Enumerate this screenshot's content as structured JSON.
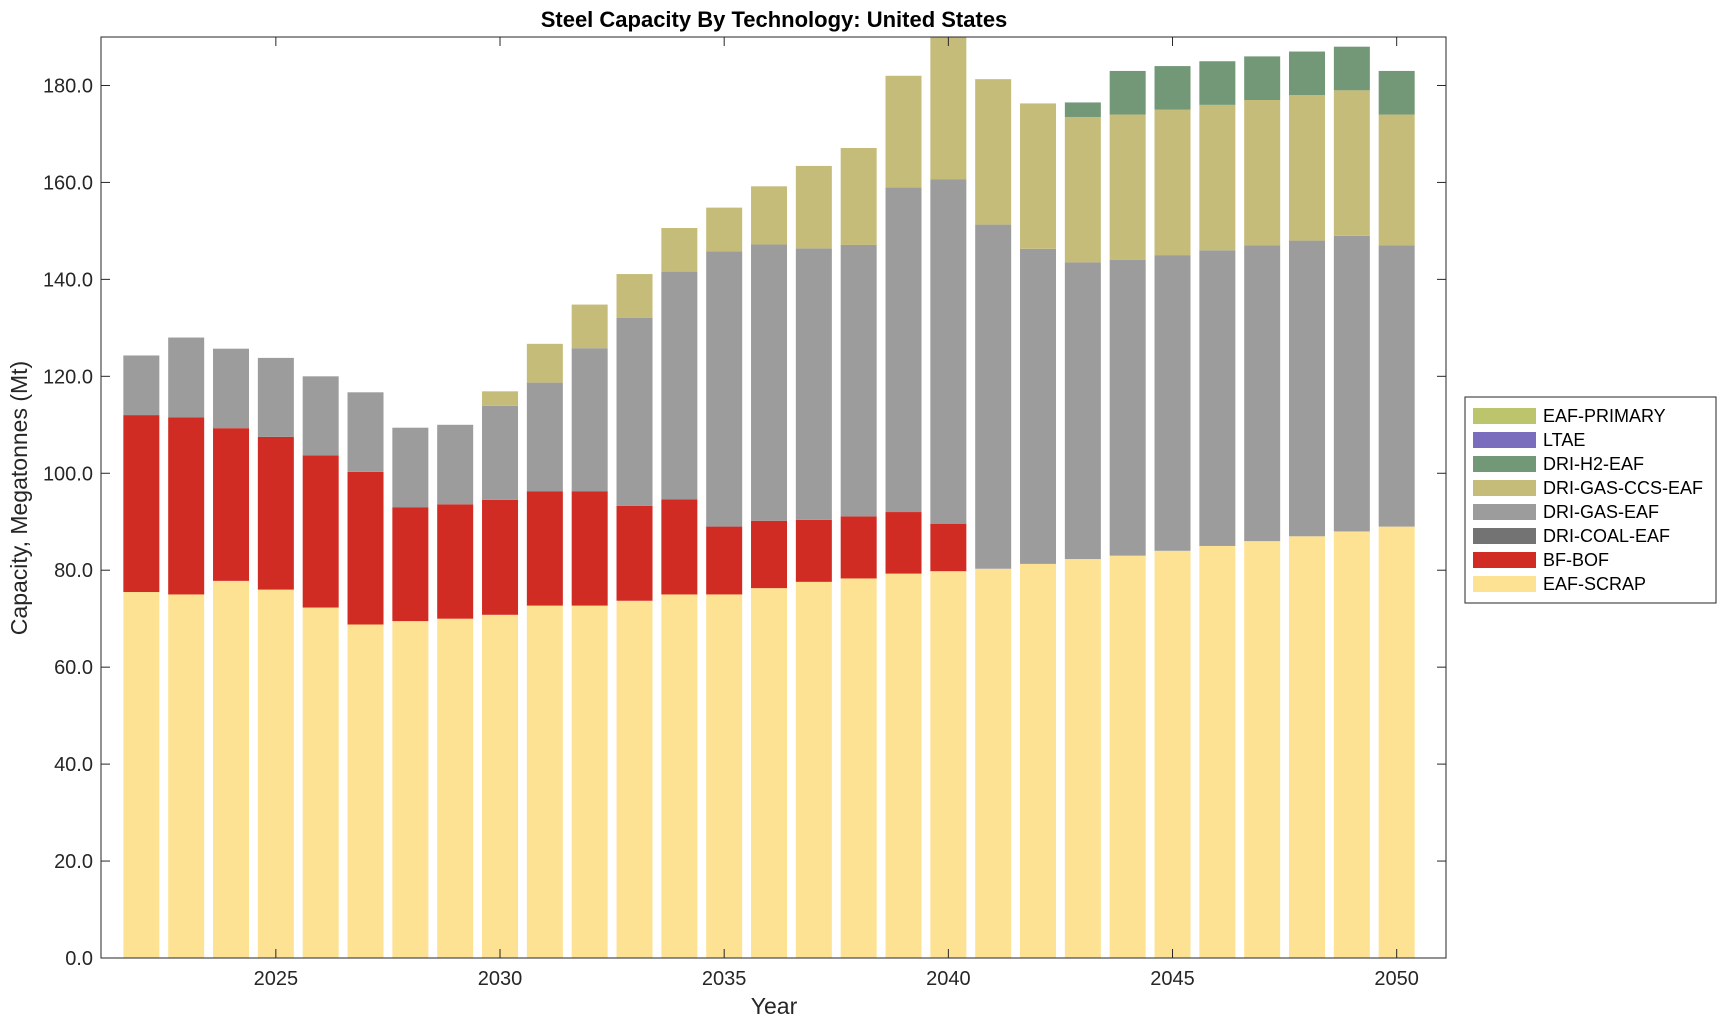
{
  "chart_data": {
    "type": "bar",
    "stacked": true,
    "title": "Steel Capacity By Technology: United States",
    "xlabel": "Year",
    "ylabel": "Capacity, Megatonnes (Mt)",
    "xlim": [
      2021.1,
      2051.1
    ],
    "ylim": [
      0,
      190
    ],
    "xticks": [
      2025,
      2030,
      2035,
      2040,
      2045,
      2050
    ],
    "xtick_labels": [
      "2025",
      "2030",
      "2035",
      "2040",
      "2045",
      "2050"
    ],
    "yticks": [
      0,
      20,
      40,
      60,
      80,
      100,
      120,
      140,
      160,
      180
    ],
    "ytick_labels": [
      "0.0",
      "20.0",
      "40.0",
      "60.0",
      "80.0",
      "100.0",
      "120.0",
      "140.0",
      "160.0",
      "180.0"
    ],
    "grid": false,
    "legend_position": "right",
    "x": [
      2022,
      2023,
      2024,
      2025,
      2026,
      2027,
      2028,
      2029,
      2030,
      2031,
      2032,
      2033,
      2034,
      2035,
      2036,
      2037,
      2038,
      2039,
      2040,
      2041,
      2042,
      2043,
      2044,
      2045,
      2046,
      2047,
      2048,
      2049,
      2050
    ],
    "series": [
      {
        "name": "EAF-SCRAP",
        "color": "#FDE294",
        "values": [
          75.5,
          75.0,
          77.8,
          76.0,
          72.3,
          68.8,
          69.5,
          70.0,
          70.8,
          72.7,
          72.7,
          73.7,
          75.0,
          75.0,
          76.3,
          77.6,
          78.3,
          79.3,
          79.8,
          80.3,
          81.3,
          82.3,
          83.0,
          84.0,
          85.0,
          86.0,
          87.0,
          88.0,
          89.0
        ]
      },
      {
        "name": "BF-BOF",
        "color": "#D12C24",
        "values": [
          36.5,
          36.5,
          31.5,
          31.5,
          31.4,
          31.5,
          23.5,
          23.6,
          23.7,
          23.6,
          23.6,
          19.6,
          19.6,
          14.0,
          13.9,
          12.8,
          12.8,
          12.7,
          9.8,
          0,
          0,
          0,
          0,
          0,
          0,
          0,
          0,
          0,
          0
        ]
      },
      {
        "name": "DRI-COAL-EAF",
        "color": "#737373",
        "values": [
          0,
          0,
          0,
          0,
          0,
          0,
          0,
          0,
          0,
          0,
          0,
          0,
          0,
          0,
          0,
          0,
          0,
          0,
          0,
          0,
          0,
          0,
          0,
          0,
          0,
          0,
          0,
          0,
          0
        ]
      },
      {
        "name": "DRI-GAS-EAF",
        "color": "#9C9C9C",
        "values": [
          12.3,
          16.5,
          16.4,
          16.3,
          16.3,
          16.4,
          16.4,
          16.4,
          19.4,
          22.4,
          29.5,
          38.8,
          47.0,
          56.8,
          57.0,
          56.0,
          56.0,
          67.0,
          71.0,
          71.0,
          65.0,
          61.2,
          61.0,
          61.0,
          61.0,
          61.0,
          61.0,
          61.0,
          58.0
        ]
      },
      {
        "name": "DRI-GAS-CCS-EAF",
        "color": "#C6BC7A",
        "values": [
          0,
          0,
          0,
          0,
          0,
          0,
          0,
          0,
          3.0,
          8.0,
          9.0,
          9.0,
          9.0,
          9.0,
          12.0,
          17.0,
          20.0,
          23.0,
          30.0,
          30.0,
          30.0,
          30.0,
          30.0,
          30.0,
          30.0,
          30.0,
          30.0,
          30.0,
          27.0
        ]
      },
      {
        "name": "DRI-H2-EAF",
        "color": "#729878",
        "values": [
          0,
          0,
          0,
          0,
          0,
          0,
          0,
          0,
          0,
          0,
          0,
          0,
          0,
          0,
          0,
          0,
          0,
          0,
          0,
          0,
          0,
          3.0,
          9.0,
          9.0,
          9.0,
          9.0,
          9.0,
          9.0,
          9.0
        ]
      },
      {
        "name": "LTAE",
        "color": "#7A6DBE",
        "values": [
          0,
          0,
          0,
          0,
          0,
          0,
          0,
          0,
          0,
          0,
          0,
          0,
          0,
          0,
          0,
          0,
          0,
          0,
          0,
          0,
          0,
          0,
          0,
          0,
          0,
          0,
          0,
          0,
          0
        ]
      },
      {
        "name": "EAF-PRIMARY",
        "color": "#BDC56C",
        "values": [
          0,
          0,
          0,
          0,
          0,
          0,
          0,
          0,
          0,
          0,
          0,
          0,
          0,
          0,
          0,
          0,
          0,
          0,
          0,
          0,
          0,
          0,
          0,
          0,
          0,
          0,
          0,
          0,
          0
        ]
      }
    ],
    "legend_order": [
      "EAF-PRIMARY",
      "LTAE",
      "DRI-H2-EAF",
      "DRI-GAS-CCS-EAF",
      "DRI-GAS-EAF",
      "DRI-COAL-EAF",
      "BF-BOF",
      "EAF-SCRAP"
    ]
  }
}
